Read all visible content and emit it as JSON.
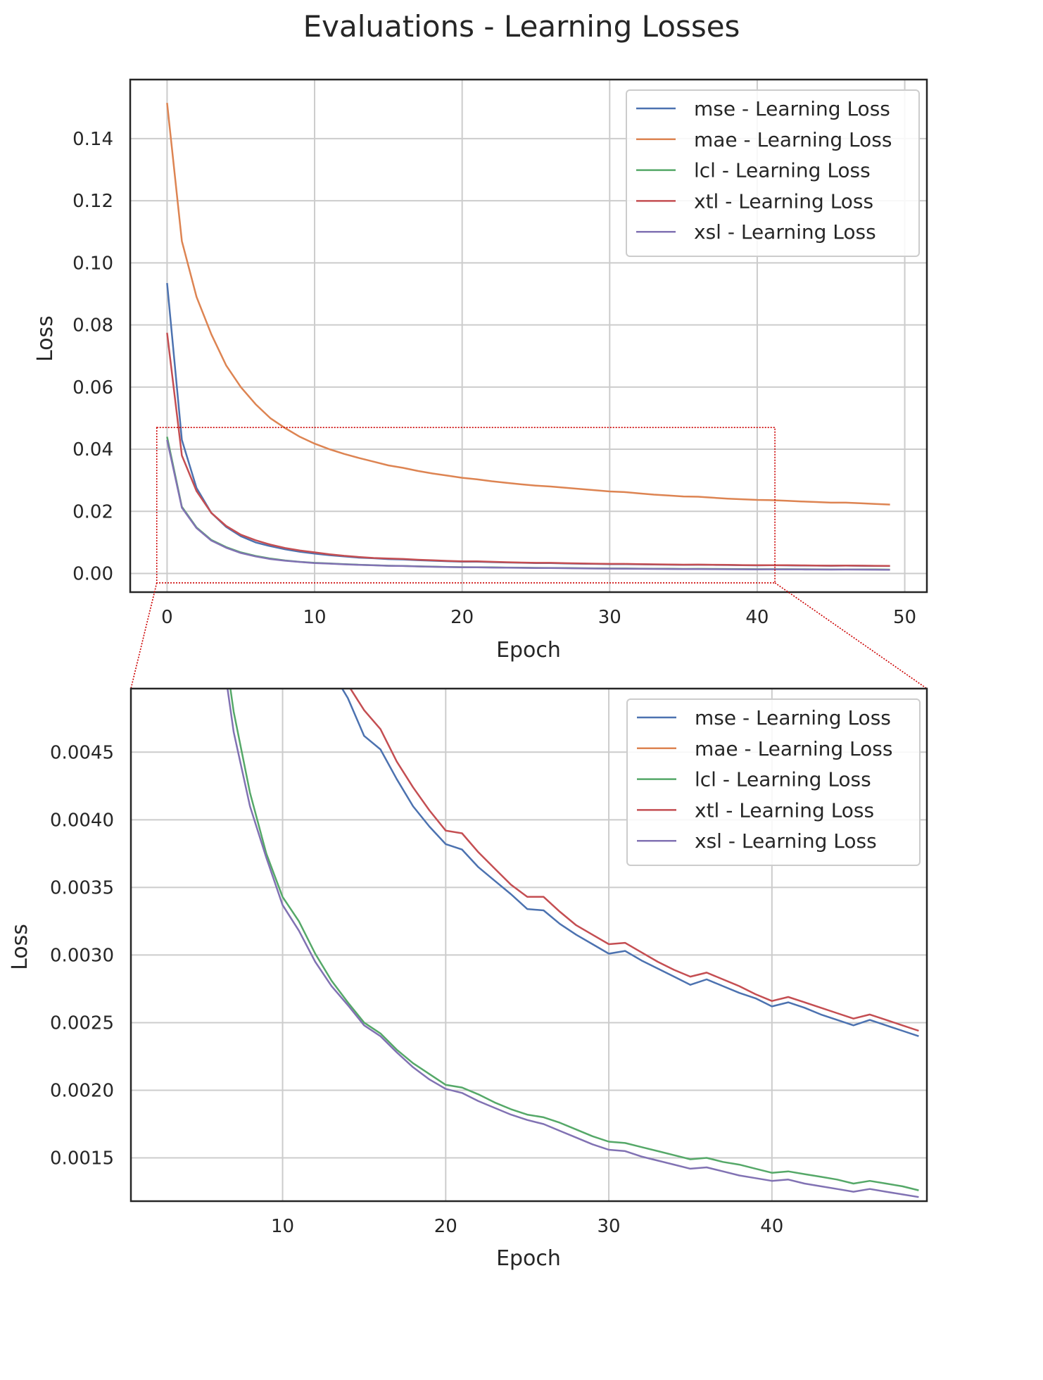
{
  "title": "Evaluations - Learning  Losses",
  "colors": {
    "mse": "#4c72b0",
    "mae": "#dd8452",
    "lcl": "#55a868",
    "xtl": "#c44e52",
    "xsl": "#8172b3",
    "zoom": "#cc0000",
    "grid": "#cccccc",
    "frame": "#262626"
  },
  "chart_data": [
    {
      "type": "line",
      "title": "Evaluations - Learning  Losses",
      "xlabel": "Epoch",
      "ylabel": "Loss",
      "xlim": [
        -2.5,
        51.5
      ],
      "ylim": [
        -0.006,
        0.159
      ],
      "xticks": [
        0,
        10,
        20,
        30,
        40,
        50
      ],
      "xtick_labels": [
        "0",
        "10",
        "20",
        "30",
        "40",
        "50"
      ],
      "yticks": [
        0.0,
        0.02,
        0.04,
        0.06,
        0.08,
        0.1,
        0.12,
        0.14
      ],
      "ytick_labels": [
        "0.00",
        "0.02",
        "0.04",
        "0.06",
        "0.08",
        "0.10",
        "0.12",
        "0.14"
      ],
      "grid": true,
      "legend": "top-right",
      "zoom_region": {
        "x": [
          -0.7,
          41.2
        ],
        "y": [
          -0.003,
          0.047
        ]
      },
      "series": [
        "mse",
        "mae",
        "lcl",
        "xtl",
        "xsl"
      ]
    },
    {
      "type": "line",
      "title": "",
      "xlabel": "Epoch",
      "ylabel": "Loss",
      "xlim": [
        0.7,
        49.5
      ],
      "ylim": [
        0.00118,
        0.00497
      ],
      "xticks": [
        10,
        20,
        30,
        40
      ],
      "xtick_labels": [
        "10",
        "20",
        "30",
        "40"
      ],
      "yticks": [
        0.0015,
        0.002,
        0.0025,
        0.003,
        0.0035,
        0.004,
        0.0045
      ],
      "ytick_labels": [
        "0.0015",
        "0.0020",
        "0.0025",
        "0.0030",
        "0.0035",
        "0.0040",
        "0.0045"
      ],
      "grid": true,
      "legend": "top-right",
      "series": [
        "mse",
        "mae",
        "lcl",
        "xtl",
        "xsl"
      ]
    }
  ],
  "series": [
    {
      "key": "mse",
      "name": "mse - Learning Loss",
      "values": [
        0.0935,
        0.043,
        0.0275,
        0.0195,
        0.015,
        0.012,
        0.01,
        0.0088,
        0.0078,
        0.007,
        0.0064,
        0.0059,
        0.0055,
        0.0051,
        0.0049,
        0.00462,
        0.00452,
        0.0043,
        0.0041,
        0.00395,
        0.00382,
        0.00378,
        0.00365,
        0.00355,
        0.00345,
        0.00334,
        0.00333,
        0.00323,
        0.00315,
        0.00308,
        0.00301,
        0.00303,
        0.00296,
        0.0029,
        0.00284,
        0.00278,
        0.00282,
        0.00277,
        0.00272,
        0.00268,
        0.00262,
        0.00265,
        0.00261,
        0.00256,
        0.00252,
        0.00248,
        0.00252,
        0.00248,
        0.00244,
        0.0024
      ]
    },
    {
      "key": "mae",
      "name": "mae - Learning Loss",
      "values": [
        0.1515,
        0.107,
        0.089,
        0.077,
        0.067,
        0.06,
        0.0545,
        0.05,
        0.0468,
        0.044,
        0.0418,
        0.04,
        0.0385,
        0.0372,
        0.036,
        0.0348,
        0.034,
        0.033,
        0.0322,
        0.0315,
        0.0308,
        0.0303,
        0.0297,
        0.0292,
        0.0287,
        0.0283,
        0.028,
        0.0276,
        0.0272,
        0.0268,
        0.0264,
        0.0262,
        0.0258,
        0.0254,
        0.0251,
        0.0248,
        0.0247,
        0.0244,
        0.0241,
        0.0239,
        0.0237,
        0.0236,
        0.0234,
        0.0232,
        0.023,
        0.0228,
        0.0228,
        0.0226,
        0.0224,
        0.0222
      ]
    },
    {
      "key": "lcl",
      "name": "lcl - Learning Loss",
      "values": [
        0.044,
        0.0215,
        0.0148,
        0.0108,
        0.0085,
        0.0068,
        0.00565,
        0.0048,
        0.0042,
        0.00375,
        0.00343,
        0.00325,
        0.00301,
        0.00281,
        0.00265,
        0.0025,
        0.00242,
        0.0023,
        0.0022,
        0.00212,
        0.00204,
        0.00202,
        0.00197,
        0.00191,
        0.00186,
        0.00182,
        0.0018,
        0.00176,
        0.00171,
        0.00166,
        0.00162,
        0.00161,
        0.00158,
        0.00155,
        0.00152,
        0.00149,
        0.0015,
        0.00147,
        0.00145,
        0.00142,
        0.00139,
        0.0014,
        0.00138,
        0.00136,
        0.00134,
        0.00131,
        0.00133,
        0.00131,
        0.00129,
        0.00126
      ]
    },
    {
      "key": "xtl",
      "name": "xtl - Learning Loss",
      "values": [
        0.0775,
        0.038,
        0.0265,
        0.0195,
        0.0153,
        0.0125,
        0.0107,
        0.0093,
        0.0082,
        0.0074,
        0.0068,
        0.0062,
        0.0057,
        0.0053,
        0.005,
        0.00481,
        0.00467,
        0.00443,
        0.00424,
        0.00407,
        0.00392,
        0.0039,
        0.00376,
        0.00364,
        0.00352,
        0.00343,
        0.00343,
        0.00332,
        0.00322,
        0.00315,
        0.00308,
        0.00309,
        0.00302,
        0.00295,
        0.00289,
        0.00284,
        0.00287,
        0.00282,
        0.00277,
        0.00271,
        0.00266,
        0.00269,
        0.00265,
        0.00261,
        0.00257,
        0.00253,
        0.00256,
        0.00252,
        0.00248,
        0.00244
      ]
    },
    {
      "key": "xsl",
      "name": "xsl - Learning Loss",
      "values": [
        0.043,
        0.0212,
        0.0146,
        0.0106,
        0.0083,
        0.0066,
        0.0055,
        0.00465,
        0.0041,
        0.00372,
        0.00337,
        0.00318,
        0.00295,
        0.00277,
        0.00263,
        0.00248,
        0.0024,
        0.00228,
        0.00217,
        0.00208,
        0.00201,
        0.00198,
        0.00192,
        0.00187,
        0.00182,
        0.00178,
        0.00175,
        0.0017,
        0.00165,
        0.0016,
        0.00156,
        0.00155,
        0.00151,
        0.00148,
        0.00145,
        0.00142,
        0.00143,
        0.0014,
        0.00137,
        0.00135,
        0.00133,
        0.00134,
        0.00131,
        0.00129,
        0.00127,
        0.00125,
        0.00127,
        0.00125,
        0.00123,
        0.00121
      ]
    }
  ]
}
